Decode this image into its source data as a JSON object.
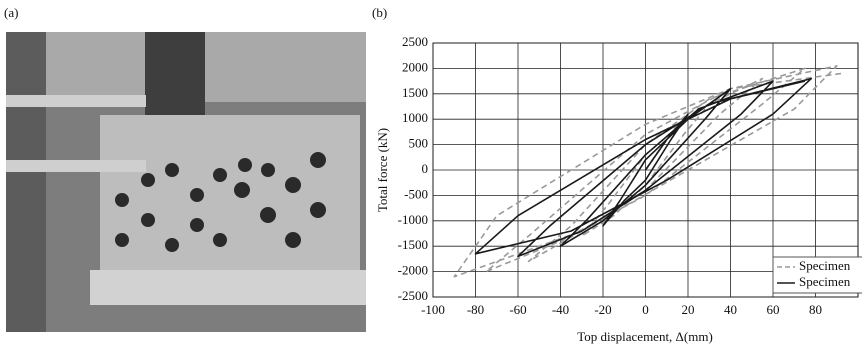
{
  "panel_labels": [
    "(a)",
    "(b)"
  ],
  "chart_data": {
    "type": "line",
    "xlabel": "Top displacement, Δ(mm)",
    "ylabel": "Total force (kN)",
    "xlim": [
      -100,
      100
    ],
    "xticks": [
      -100,
      -80,
      -60,
      -40,
      -20,
      0,
      20,
      40,
      60,
      80
    ],
    "ylim": [
      -2500,
      2500
    ],
    "yticks": [
      -2500,
      -2000,
      -1500,
      -1000,
      -500,
      0,
      500,
      1000,
      1500,
      2000,
      2500
    ],
    "grid": true,
    "legend": "lower right",
    "series": [
      {
        "name": "Specimen",
        "color": "#9a9a9a",
        "linestyle": "dashed",
        "x": [
          0,
          15,
          30,
          18,
          0,
          -15,
          -30,
          -18,
          0,
          25,
          55,
          35,
          0,
          -30,
          -55,
          -35,
          0,
          30,
          75,
          55,
          0,
          -40,
          -75,
          -55,
          0,
          40,
          90,
          70,
          20,
          -30,
          -90,
          -70,
          0,
          40,
          92
        ],
        "values": [
          0,
          900,
          1300,
          700,
          -300,
          -900,
          -1300,
          -700,
          300,
          1200,
          1800,
          1100,
          -400,
          -1200,
          -1800,
          -1100,
          500,
          1400,
          2000,
          1300,
          -500,
          -1400,
          -2000,
          -1300,
          700,
          1600,
          2050,
          1200,
          0,
          -1200,
          -2100,
          -900,
          900,
          1600,
          1900
        ]
      },
      {
        "name": "Specimen",
        "color": "#1a1a1a",
        "linestyle": "solid",
        "x": [
          0,
          10,
          20,
          12,
          0,
          -10,
          -20,
          -12,
          0,
          20,
          40,
          28,
          0,
          -20,
          -40,
          -28,
          0,
          25,
          60,
          45,
          0,
          -30,
          -60,
          -45,
          0,
          30,
          78,
          60,
          10,
          -35,
          -80,
          -60,
          0,
          40,
          75
        ],
        "values": [
          0,
          600,
          1100,
          600,
          -200,
          -600,
          -1100,
          -600,
          200,
          1000,
          1600,
          1000,
          -300,
          -1000,
          -1500,
          -1000,
          300,
          1200,
          1750,
          1100,
          -400,
          -1200,
          -1700,
          -1100,
          500,
          1300,
          1800,
          1100,
          -200,
          -1200,
          -1650,
          -900,
          600,
          1400,
          1750
        ]
      }
    ]
  }
}
